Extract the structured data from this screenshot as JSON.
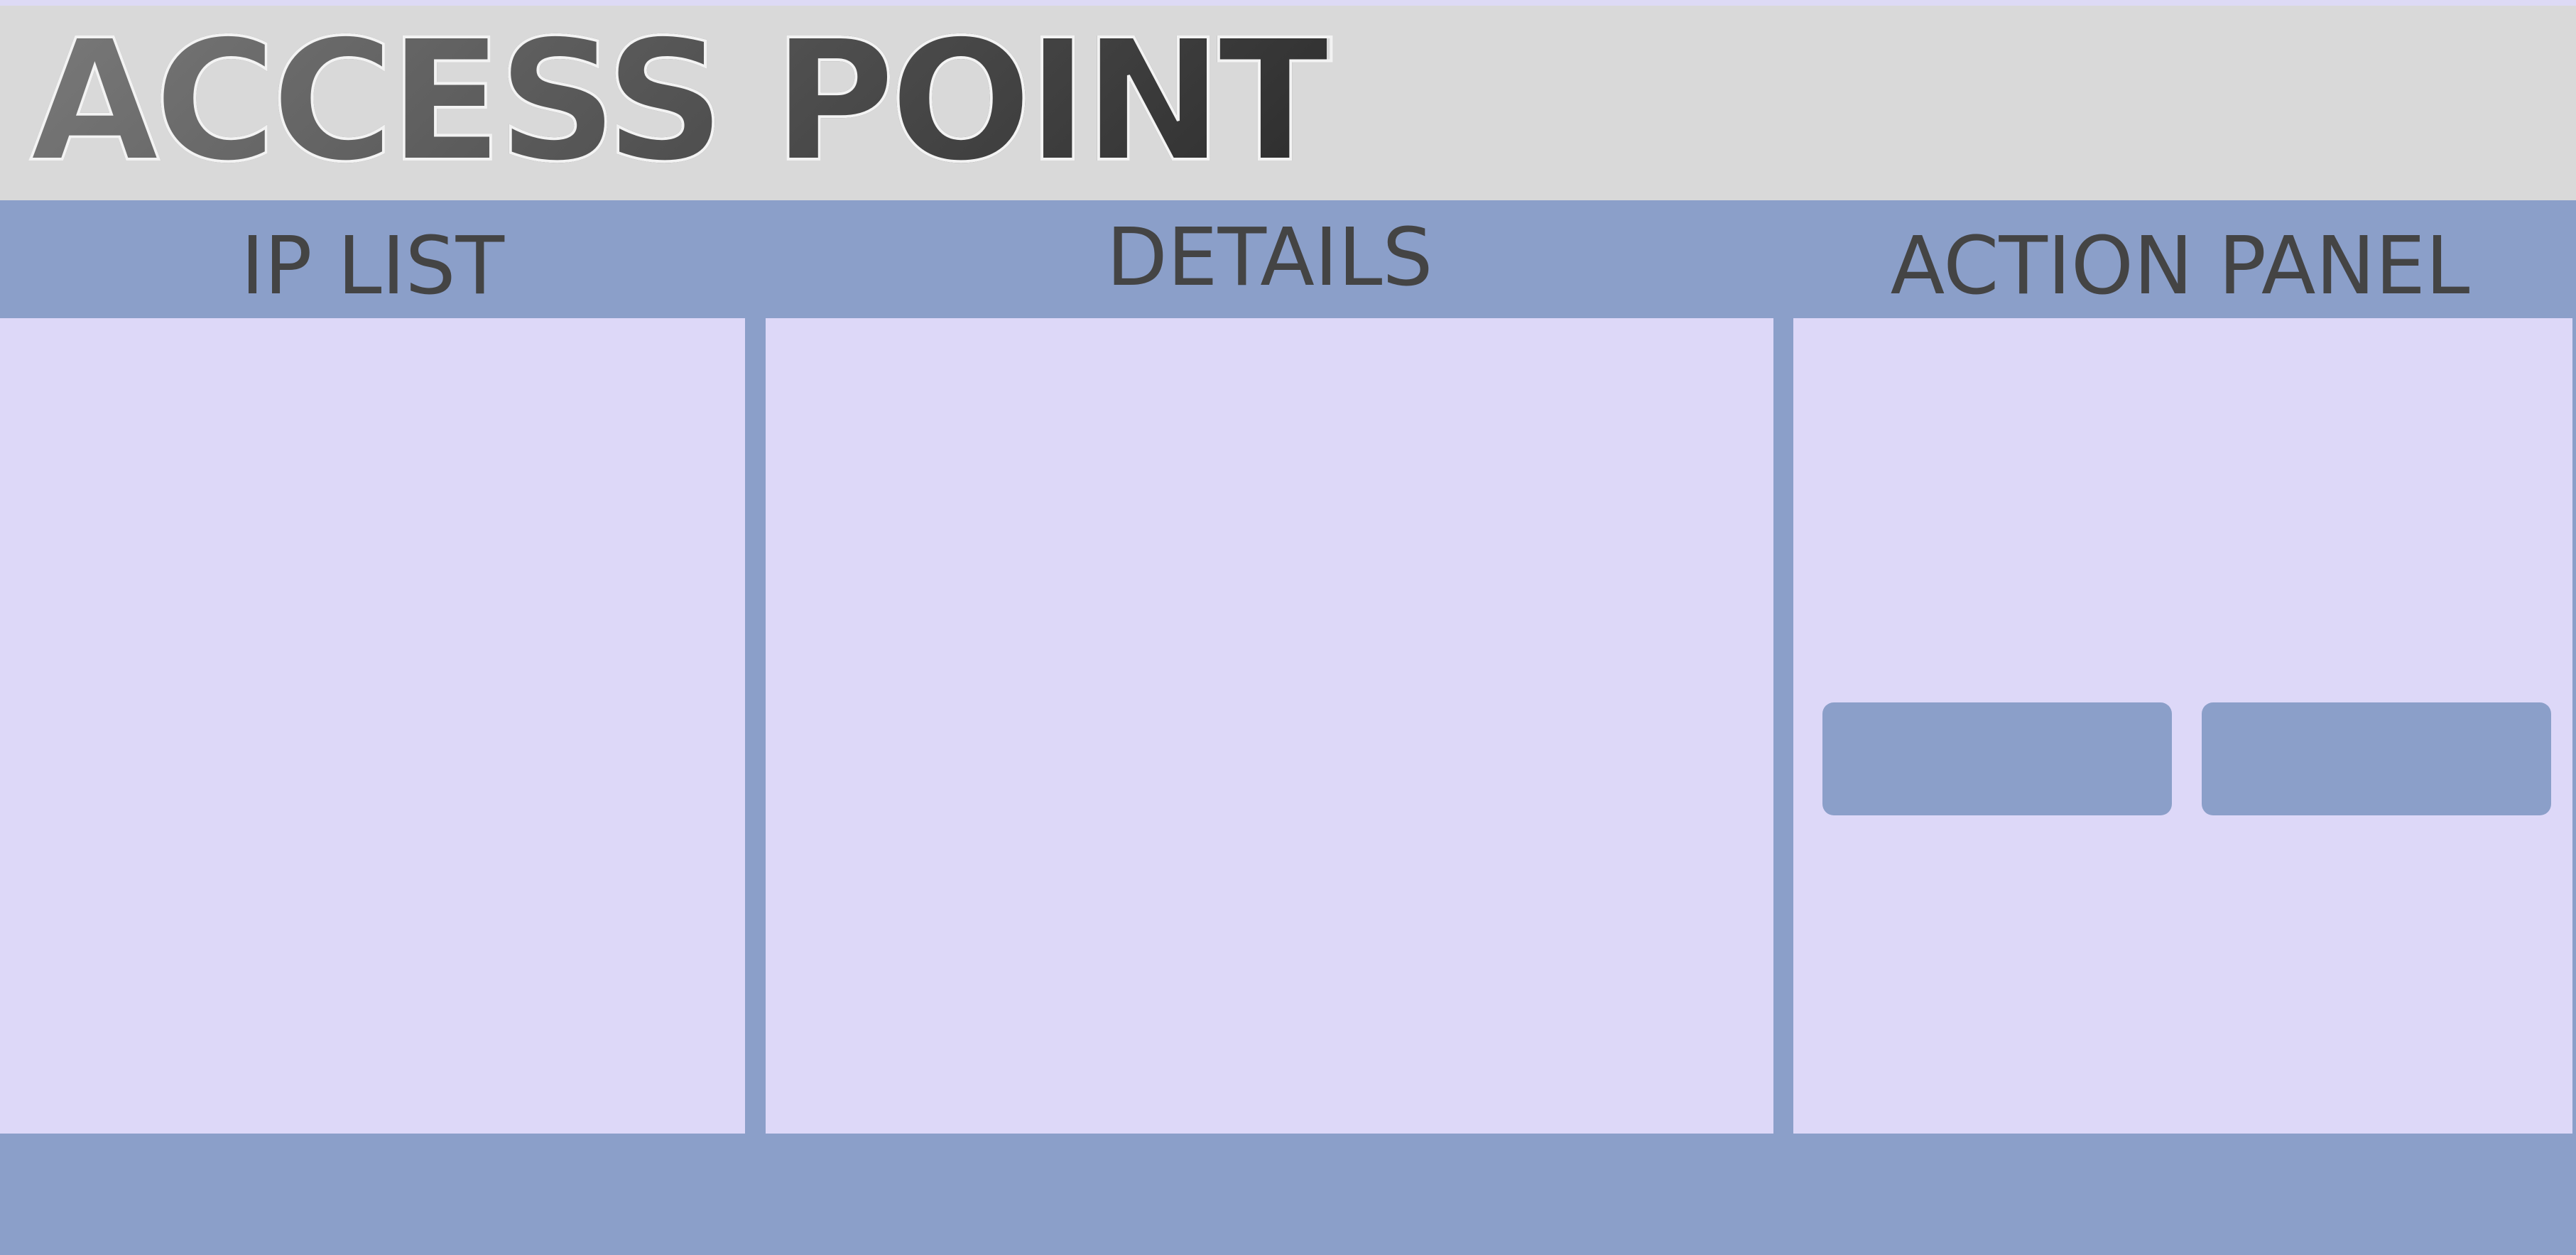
{
  "app": {
    "title": "ACCESS POINT"
  },
  "columns": {
    "ip_list": {
      "label": "IP LIST"
    },
    "details": {
      "label": "DETAILS"
    },
    "action_panel": {
      "label": "ACTION PANEL"
    }
  },
  "action_panel": {
    "buttons": [
      {
        "label": ""
      },
      {
        "label": ""
      }
    ]
  },
  "colors": {
    "background": "#8b9fc9",
    "title_bar": "#d9d9d9",
    "panel": "#ddd8f8",
    "header_text": "#444444",
    "button": "#8b9fc9"
  }
}
